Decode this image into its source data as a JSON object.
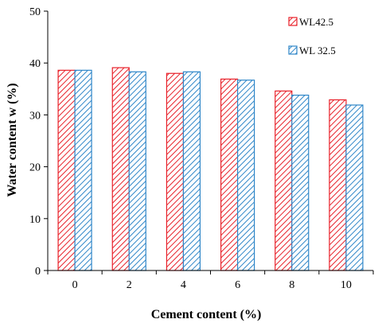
{
  "chart_data": {
    "type": "bar",
    "title": "",
    "xlabel": "Cement content (%)",
    "ylabel": "Water content w (%)",
    "categories": [
      "0",
      "2",
      "4",
      "6",
      "8",
      "10"
    ],
    "ylim": [
      0,
      50
    ],
    "yticks": [
      0,
      10,
      20,
      30,
      40,
      50
    ],
    "grid": false,
    "legend_position": "top-right",
    "series": [
      {
        "name": "WL42.5",
        "color": "#e8212a",
        "pattern": "diagonal-hatch",
        "values": [
          38.6,
          39.1,
          38.0,
          36.9,
          34.6,
          32.9
        ]
      },
      {
        "name": "WL 32.5",
        "color": "#2e86c8",
        "pattern": "diagonal-hatch",
        "values": [
          38.6,
          38.3,
          38.3,
          36.7,
          33.8,
          31.9
        ]
      }
    ]
  }
}
